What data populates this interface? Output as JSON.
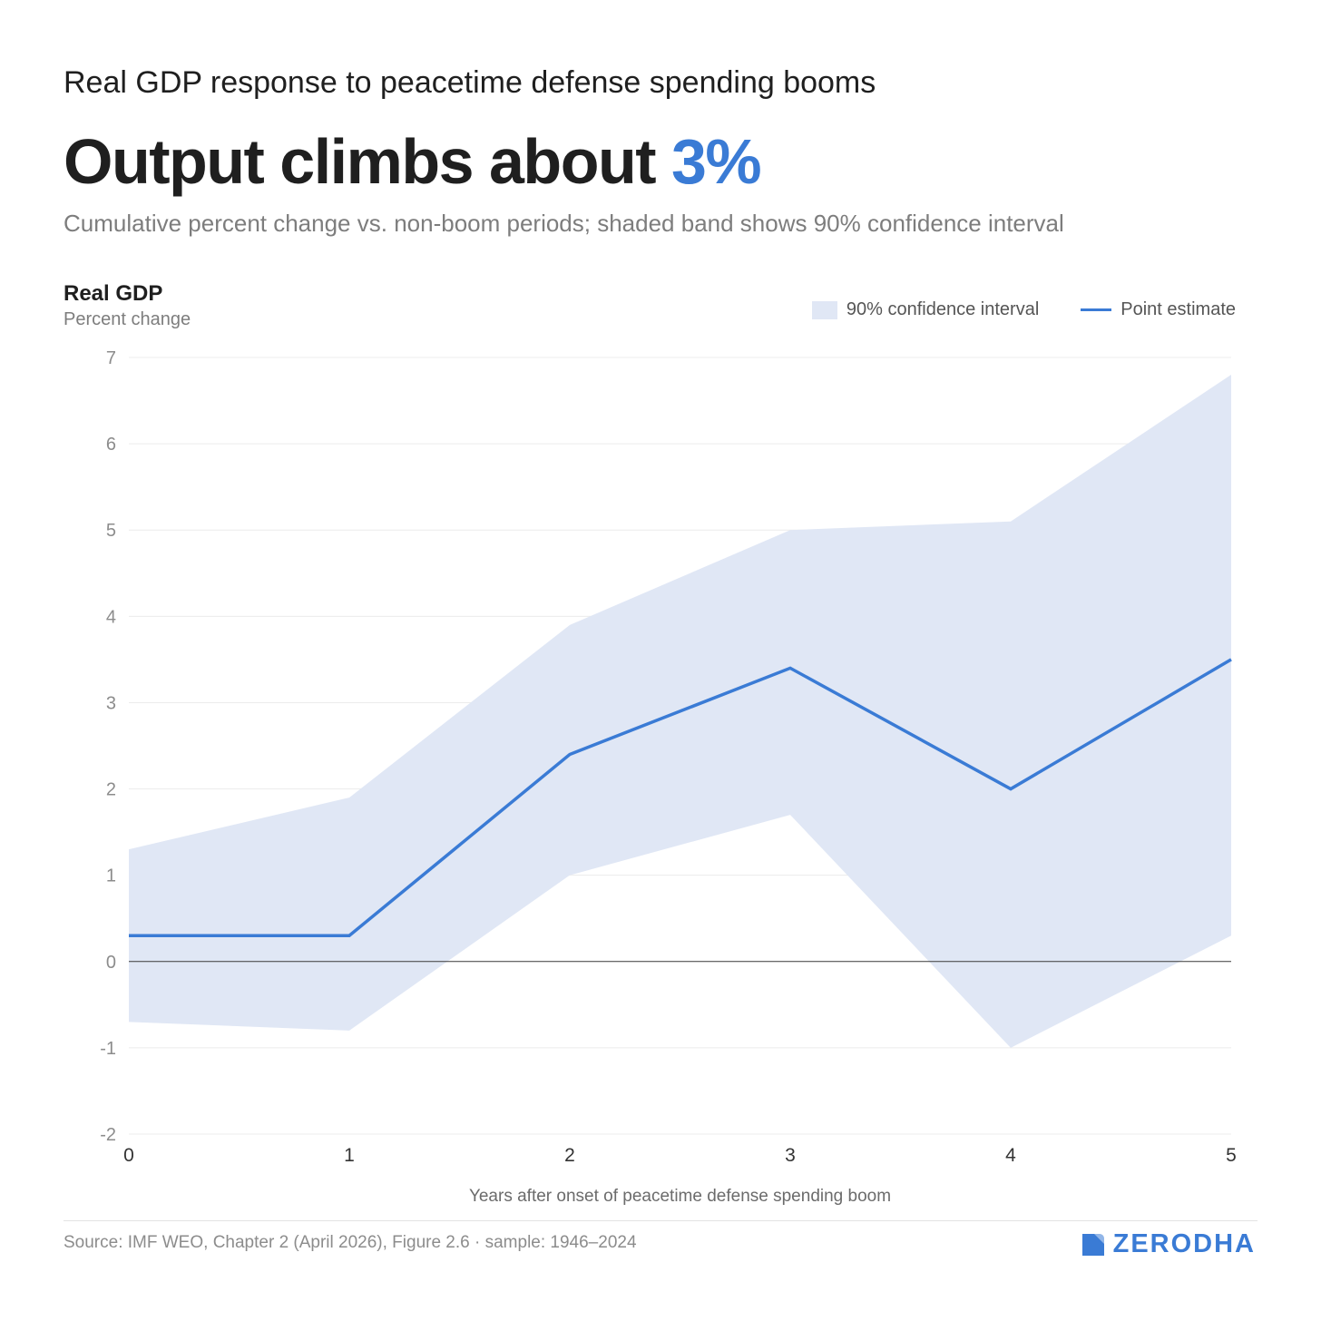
{
  "header": {
    "kicker": "Real GDP response to peacetime defense spending booms",
    "headline_main": "Output climbs about ",
    "headline_accent": "3%",
    "subtitle": "Cumulative percent change vs. non-boom periods; shaded band shows 90% confidence interval"
  },
  "chart_data": {
    "type": "line",
    "ytitle": "Real GDP",
    "yunit": "Percent change",
    "xlabel": "Years after onset of peacetime defense spending boom",
    "x": [
      0,
      1,
      2,
      3,
      4,
      5
    ],
    "ylim": [
      -2,
      7
    ],
    "yticks": [
      7,
      6,
      5,
      4,
      3,
      2,
      1,
      0,
      -1,
      -2
    ],
    "grid": true,
    "legend_position": "top-right",
    "series": [
      {
        "name": "Point estimate",
        "values": [
          0.3,
          0.3,
          2.4,
          3.4,
          2.0,
          3.5
        ],
        "color": "#3a7bd5"
      }
    ],
    "band": {
      "name": "90% confidence interval",
      "upper": [
        1.3,
        1.9,
        3.9,
        5.0,
        5.1,
        6.8
      ],
      "lower": [
        -0.7,
        -0.8,
        1.0,
        1.7,
        -1.0,
        0.3
      ],
      "color": "#e0e7f5"
    }
  },
  "footer": {
    "source": "Source: IMF WEO, Chapter 2 (April 2026), Figure 2.6 · sample: 1946–2024",
    "brand": "ZERODHA",
    "brand_icon": "zerodha-logo-icon"
  }
}
